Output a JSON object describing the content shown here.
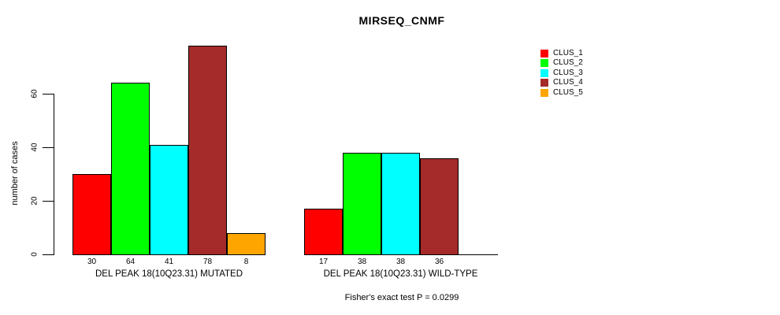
{
  "chart": {
    "title": "MIRSEQ_CNMF",
    "ylabel": "number of cases",
    "footnote": "Fisher's exact test P = 0.0299"
  },
  "chart_data": {
    "type": "bar",
    "title": "MIRSEQ_CNMF",
    "xlabel": "",
    "ylabel": "number of cases",
    "ylim": [
      0,
      78
    ],
    "yticks": [
      0,
      20,
      40,
      60
    ],
    "grid": false,
    "legend_position": "right",
    "series": [
      {
        "name": "CLUS_1",
        "color": "#FF0000"
      },
      {
        "name": "CLUS_2",
        "color": "#00FF00"
      },
      {
        "name": "CLUS_3",
        "color": "#00FFFF"
      },
      {
        "name": "CLUS_4",
        "color": "#A52A2A"
      },
      {
        "name": "CLUS_5",
        "color": "#FFA500"
      }
    ],
    "groups": [
      {
        "label": "DEL PEAK 18(10Q23.31) MUTATED",
        "values": [
          30,
          64,
          41,
          78,
          8
        ],
        "value_labels": [
          "30",
          "64",
          "41",
          "78",
          "8"
        ]
      },
      {
        "label": "DEL PEAK 18(10Q23.31) WILD-TYPE",
        "values": [
          17,
          38,
          38,
          36,
          0
        ],
        "value_labels": [
          "17",
          "38",
          "38",
          "36",
          ""
        ]
      }
    ],
    "annotation": "Fisher's exact test P = 0.0299"
  }
}
